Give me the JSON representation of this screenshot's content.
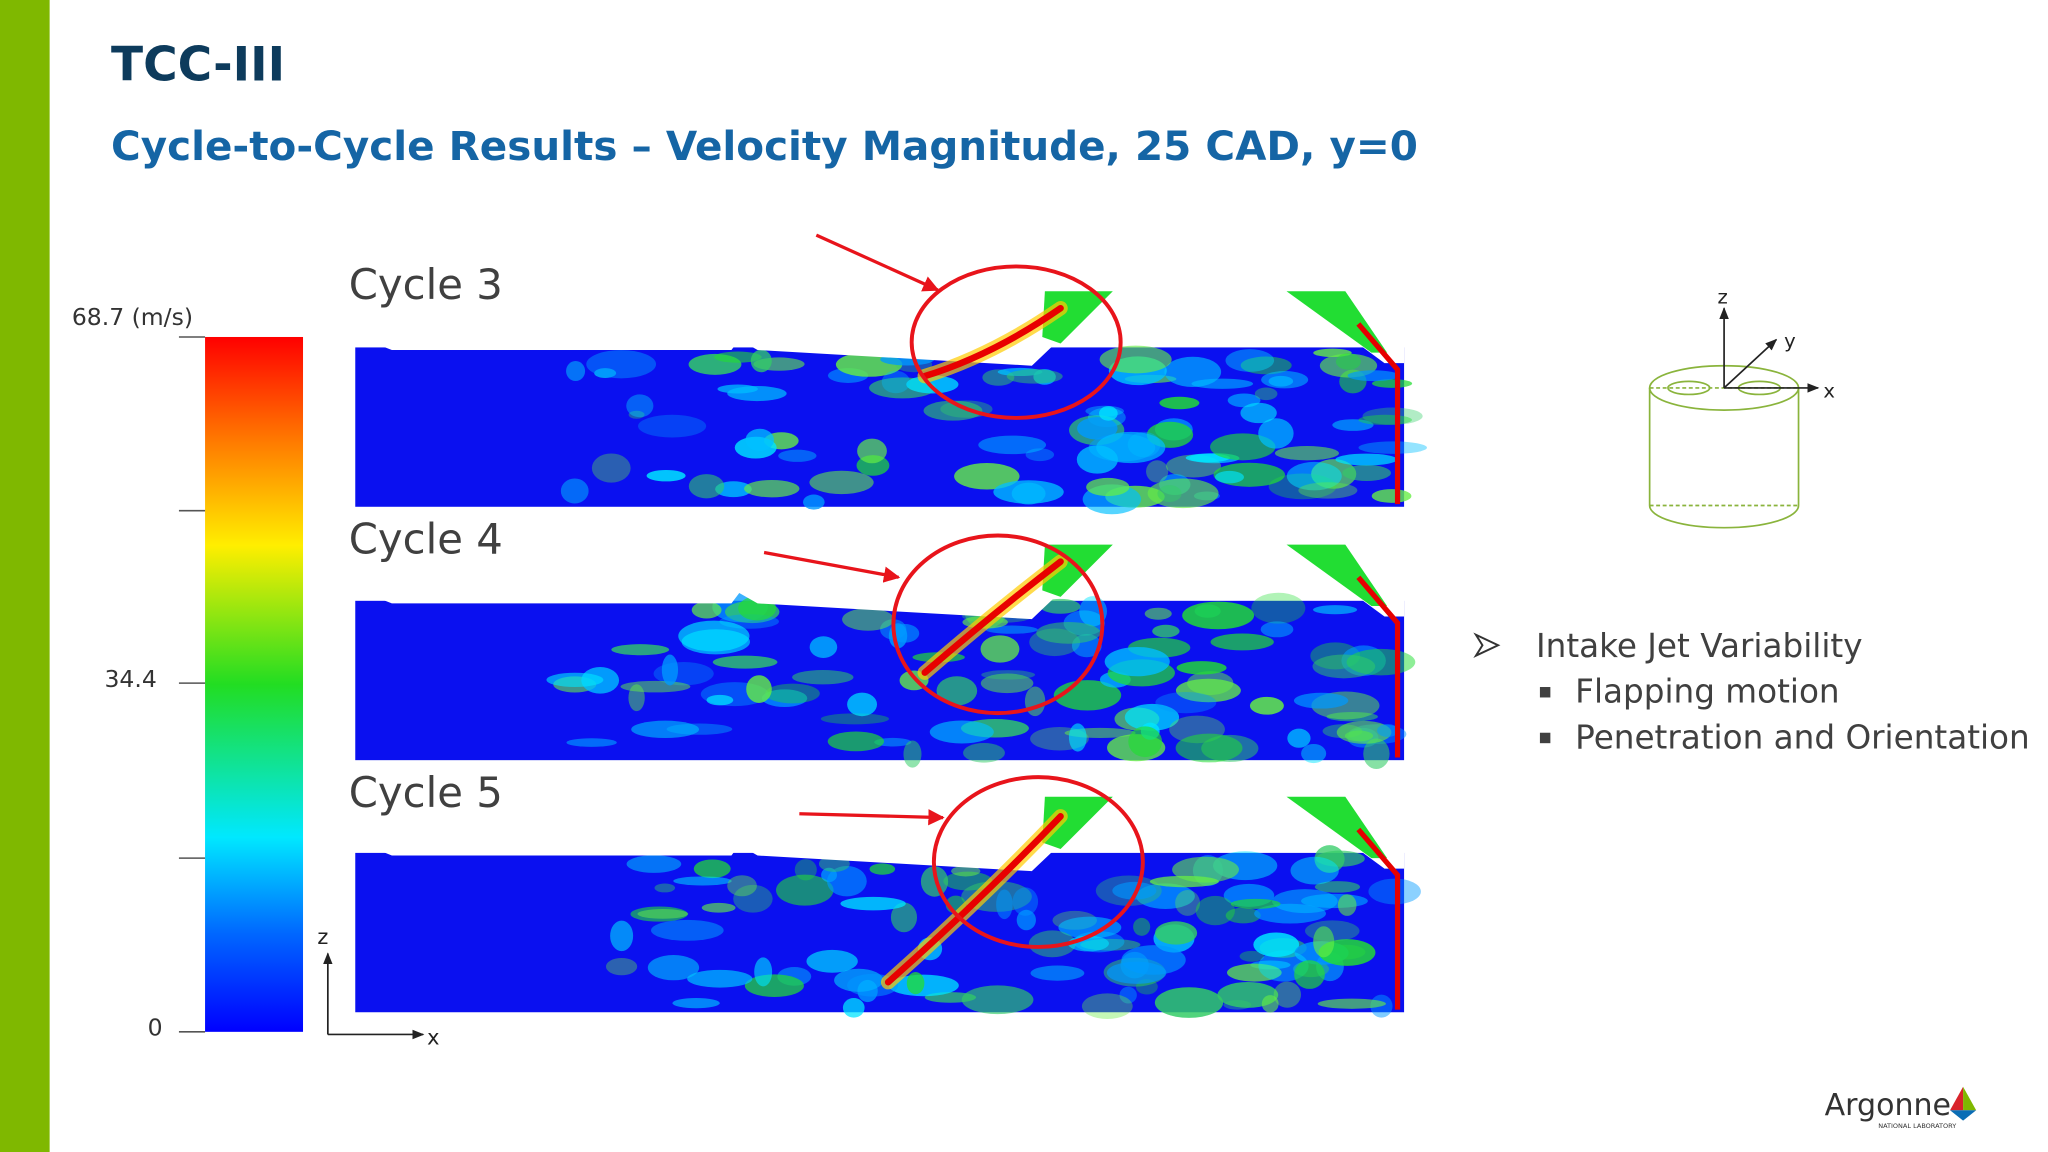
{
  "header": {
    "title": "TCC-III",
    "subtitle": "Cycle-to-Cycle Results – Velocity Magnitude, 25 CAD, y=0"
  },
  "colorbar": {
    "labels": [
      "68.7 (m/s)",
      "34.4",
      "0"
    ]
  },
  "panels": {
    "axis_z": "z",
    "axis_x": "x",
    "cycles": [
      "Cycle 3",
      "Cycle 4",
      "Cycle 5"
    ]
  },
  "diagram": {
    "z": "z",
    "y": "y",
    "x": "x"
  },
  "bullets": {
    "main": "Intake Jet Variability",
    "sub": [
      "Flapping motion",
      "Penetration and Orientation"
    ]
  },
  "logo": {
    "name": "Argonne",
    "tagline": "NATIONAL LABORATORY"
  }
}
